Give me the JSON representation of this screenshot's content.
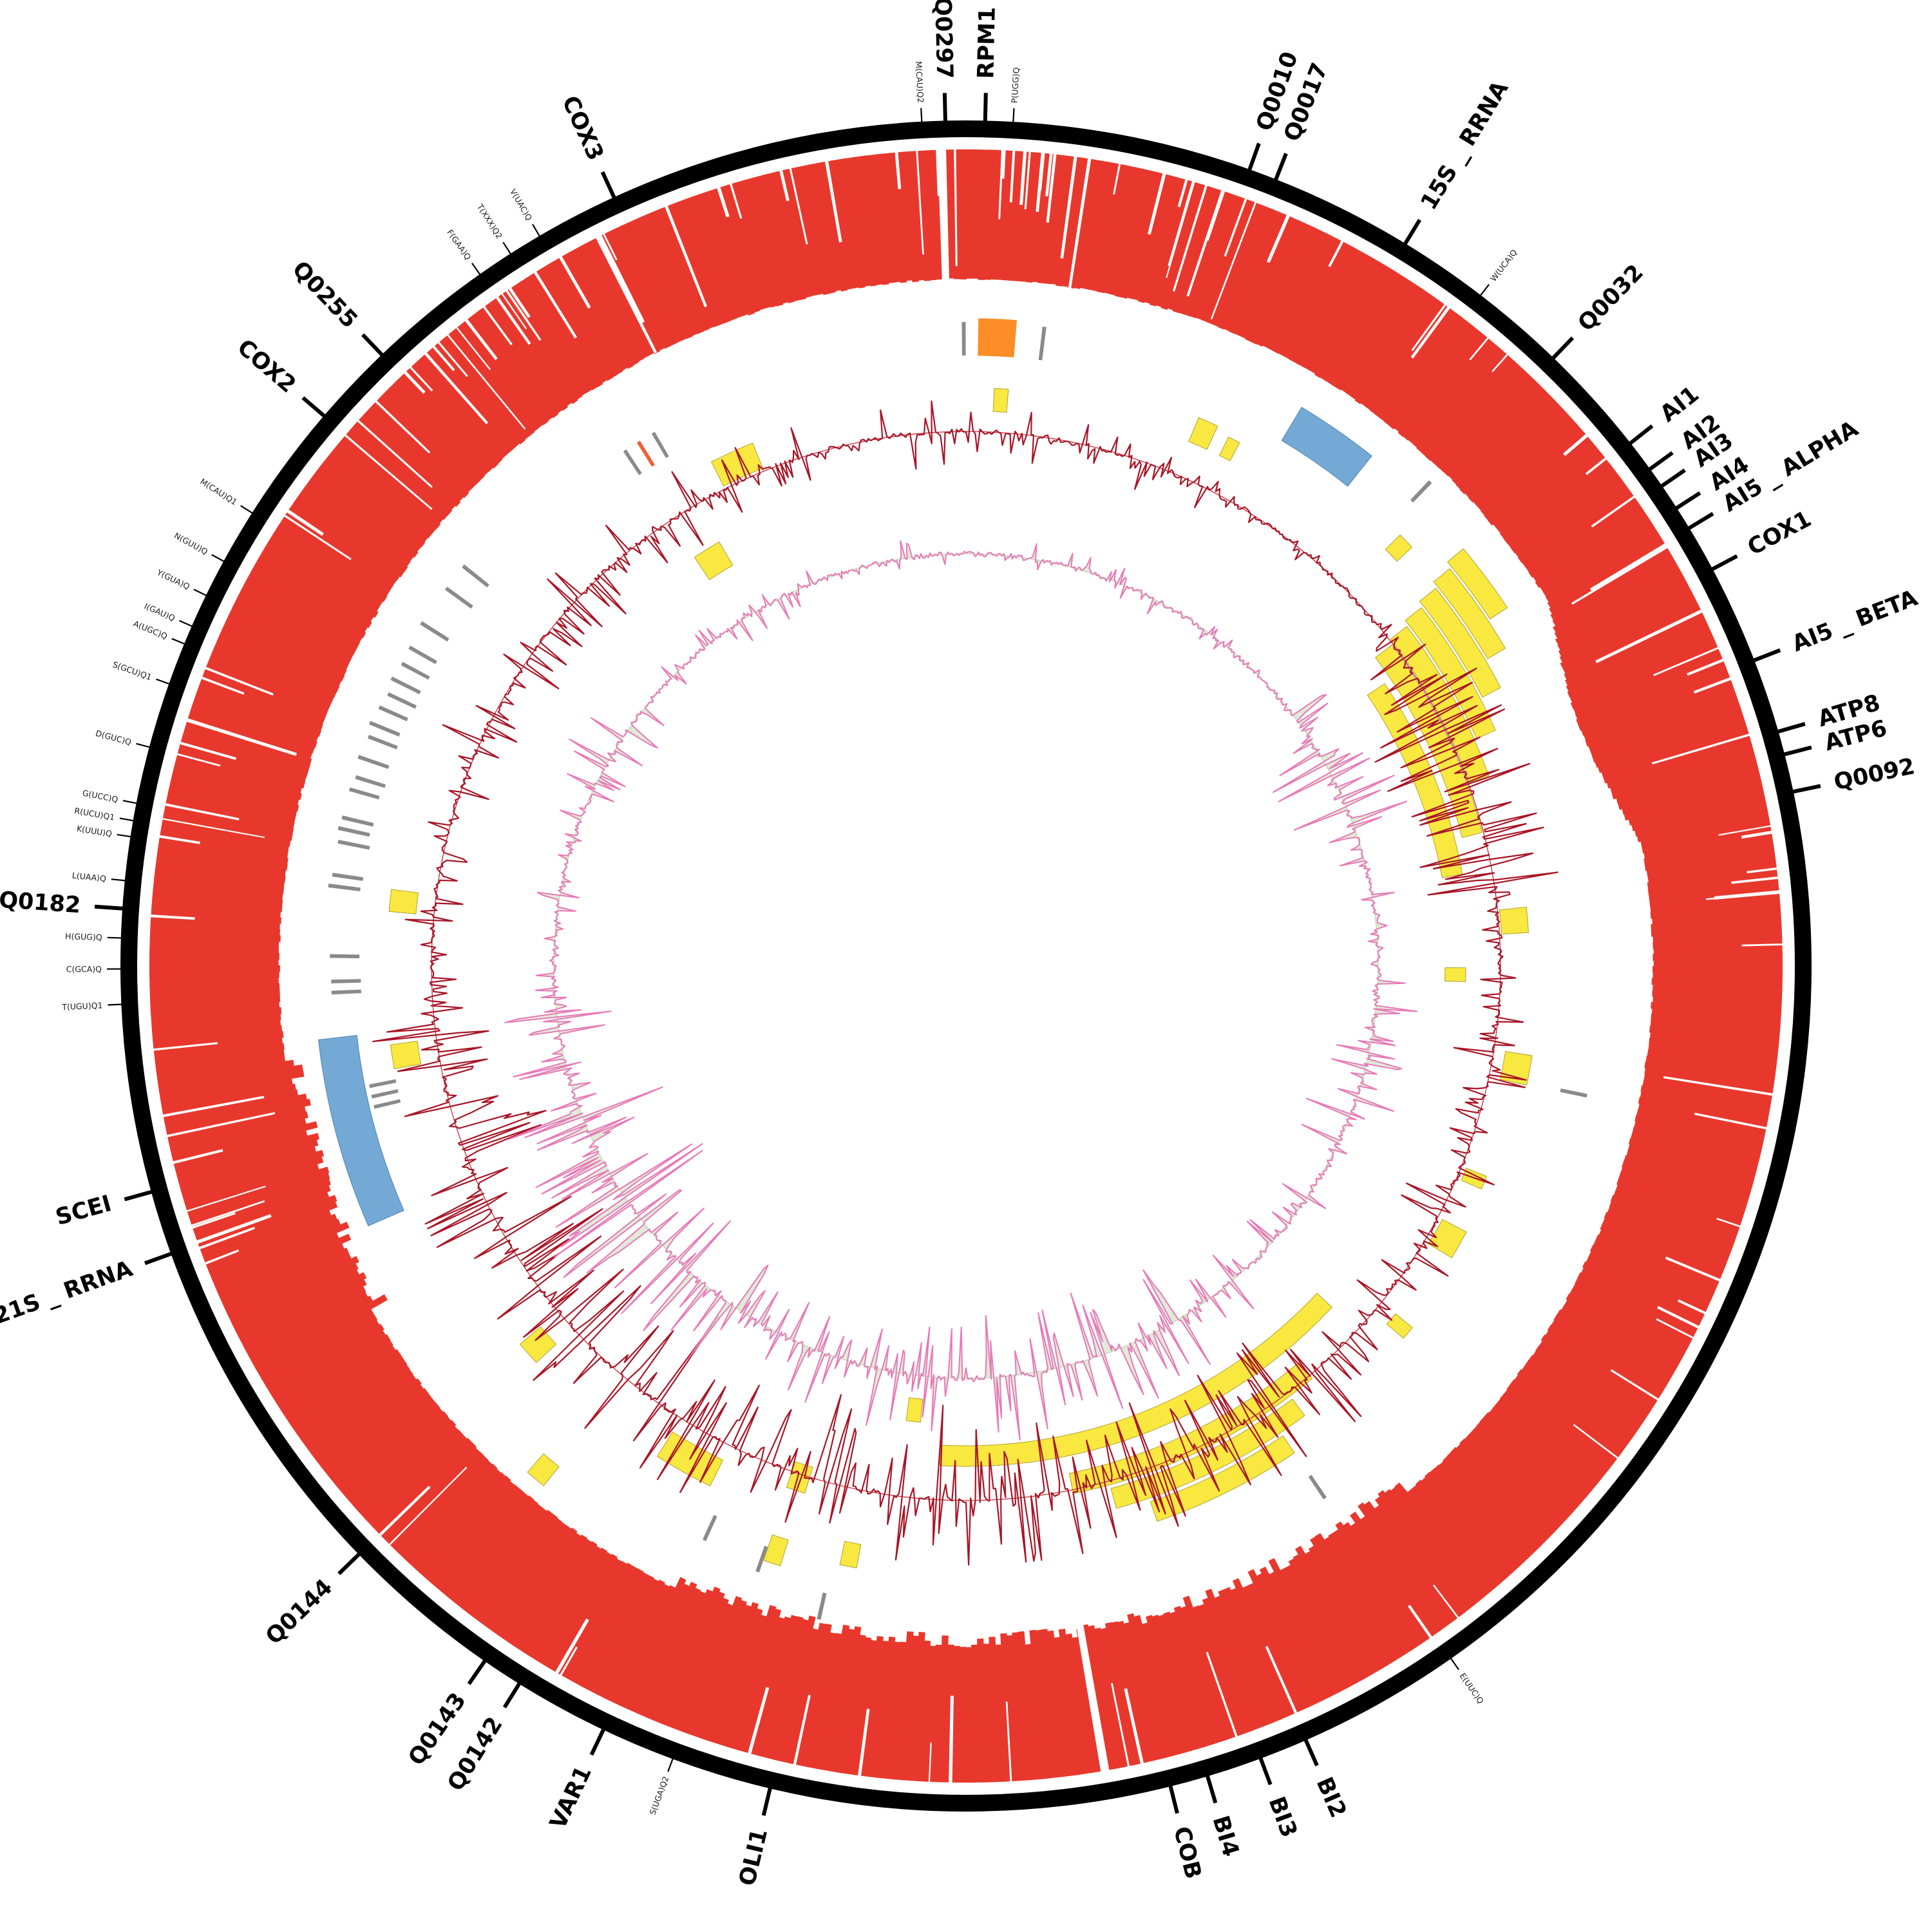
{
  "figure": {
    "type": "circos",
    "description": "Circular genome map (Circos-style) of a mitochondrial genome: outer black position ring with radial gene and tRNA labels, a thick red coverage ring with white dropout spikes, feature glyph tracks (yellow intron/ORF blocks, blue rRNA arcs, orange and gray marks) and two inner radial signal tracks (dark red and pink with pale green fill)."
  },
  "colors": {
    "background": "#ffffff",
    "outer_ring": "#000000",
    "ring_red": "#e8382d",
    "glyph_orange": "#fd8d27",
    "glyph_orangered": "#f25c33",
    "glyph_yellow": "#f9e840",
    "glyph_yellow_edge": "#b0a232",
    "glyph_blue": "#73a9d4",
    "glyph_blue_edge": "#5b8cb8",
    "glyph_gray": "#8a8a8a",
    "line_red": "#a81526",
    "baseline_red": "#c2293a",
    "line_pink": "#e878b8",
    "fill_green": "#d9e8cf",
    "baseline_green": "#c5d9ba",
    "label_color": "#000000",
    "small_label_color": "#1a1a1a"
  },
  "chart_data": {
    "type": "circos",
    "seed": 1337,
    "gene_labels": [
      {
        "label": "Q0297",
        "angle": 358.6
      },
      {
        "label": "RPM1",
        "angle": 1.3
      },
      {
        "label": "Q0010",
        "angle": 19.6
      },
      {
        "label": "Q0017",
        "angle": 21.5
      },
      {
        "label": "15S _ RRNA",
        "angle": 31.3
      },
      {
        "label": "Q0032",
        "angle": 44.0
      },
      {
        "label": "AI1",
        "angle": 51.8
      },
      {
        "label": "AI2",
        "angle": 54.0
      },
      {
        "label": "AI3",
        "angle": 55.4
      },
      {
        "label": "AI4",
        "angle": 57.2
      },
      {
        "label": "AI5 _ ALPHA",
        "angle": 58.8
      },
      {
        "label": "COX1",
        "angle": 62.0
      },
      {
        "label": "AI5 _ BETA",
        "angle": 68.8
      },
      {
        "label": "ATP8",
        "angle": 73.9
      },
      {
        "label": "ATP6",
        "angle": 75.5
      },
      {
        "label": "Q0092",
        "angle": 78.1
      },
      {
        "label": "BI2",
        "angle": 156.3
      },
      {
        "label": "BI3",
        "angle": 159.6
      },
      {
        "label": "BI4",
        "angle": 163.4
      },
      {
        "label": "COB",
        "angle": 166.0
      },
      {
        "label": "OLI1",
        "angle": 193.4
      },
      {
        "label": "VAR1",
        "angle": 205.4
      },
      {
        "label": "Q0142",
        "angle": 211.9
      },
      {
        "label": "Q0143",
        "angle": 214.7
      },
      {
        "label": "Q0144",
        "angle": 225.9
      },
      {
        "label": "21S _ RRNA",
        "angle": 250.1
      },
      {
        "label": "SCEI",
        "angle": 254.5
      },
      {
        "label": "Q0182",
        "angle": 273.9
      },
      {
        "label": "COX2",
        "angle": 310.6
      },
      {
        "label": "Q0255",
        "angle": 316.3
      },
      {
        "label": "COX3",
        "angle": 335.4
      }
    ],
    "trna_labels": [
      {
        "label": "M(CAU)Q2",
        "angle": 357.0
      },
      {
        "label": "P(UGG)Q",
        "angle": 3.2
      },
      {
        "label": "W(UCA)Q",
        "angle": 37.5
      },
      {
        "label": "E(UUC)Q",
        "angle": 145.0
      },
      {
        "label": "S(UGA)Q2",
        "angle": 200.3
      },
      {
        "label": "T(UGU)Q1",
        "angle": 267.4
      },
      {
        "label": "C(GCA)Q",
        "angle": 269.8
      },
      {
        "label": "H(GUG)Q",
        "angle": 271.9
      },
      {
        "label": "L(UAA)Q",
        "angle": 275.8
      },
      {
        "label": "K(UUU)Q",
        "angle": 278.8
      },
      {
        "label": "R(UCU)Q1",
        "angle": 279.9
      },
      {
        "label": "G(UCC)Q",
        "angle": 281.1
      },
      {
        "label": "D(GUC)Q",
        "angle": 285.0
      },
      {
        "label": "S(GCU)Q1",
        "angle": 289.5
      },
      {
        "label": "A(UGC)Q",
        "angle": 292.4
      },
      {
        "label": "I(GAU)Q",
        "angle": 293.7
      },
      {
        "label": "Y(GUA)Q",
        "angle": 296.0
      },
      {
        "label": "N(GUU)Q",
        "angle": 298.6
      },
      {
        "label": "M(CAU)Q1",
        "angle": 302.4
      },
      {
        "label": "F(GAA)Q",
        "angle": 324.9
      },
      {
        "label": "T(XXX)Q2",
        "angle": 327.4
      },
      {
        "label": "V(UAC)Q",
        "angle": 329.7
      }
    ],
    "glyphs": {
      "orange_blocks": [
        [
          1.1,
          4.5,
          948,
          1006
        ]
      ],
      "orangered_ticks": [
        [
          328.0,
          916,
          960
        ]
      ],
      "blue_blocks": [
        [
          31.0,
          38.5,
          952,
          1012
        ],
        [
          246.5,
          263.5,
          952,
          1012
        ]
      ],
      "yellow_blocks": [
        [
          50.0,
          56.5,
          976,
          1008
        ],
        [
          50.6,
          59.5,
          940,
          972
        ],
        [
          51.2,
          62.5,
          904,
          936
        ],
        [
          51.8,
          66.0,
          868,
          900
        ],
        [
          52.4,
          70.0,
          832,
          864
        ],
        [
          53.0,
          75.5,
          796,
          828
        ],
        [
          56.0,
          79.5,
          752,
          784
        ],
        [
          146.0,
          161.0,
          880,
          912
        ],
        [
          143.0,
          164.5,
          842,
          874
        ],
        [
          140.0,
          168.5,
          804,
          836
        ],
        [
          133.0,
          183.0,
          745,
          777
        ],
        [
          2.8,
          4.2,
          862,
          898
        ],
        [
          23.0,
          25.0,
          885,
          925
        ],
        [
          26.4,
          27.6,
          885,
          917
        ],
        [
          45.2,
          46.8,
          918,
          950
        ],
        [
          333.2,
          337.8,
          835,
          877
        ],
        [
          326.4,
          329.8,
          720,
          762
        ],
        [
          275.4,
          277.6,
          858,
          900
        ],
        [
          259.8,
          262.2,
          860,
          902
        ],
        [
          227.3,
          229.7,
          866,
          908
        ],
        [
          219.1,
          220.9,
          1002,
          1040
        ],
        [
          206.2,
          212.2,
          855,
          900
        ],
        [
          197.0,
          199.0,
          814,
          856
        ],
        [
          197.2,
          198.8,
          933,
          975
        ],
        [
          190.3,
          191.9,
          913,
          950
        ],
        [
          185.7,
          187.5,
          676,
          712
        ],
        [
          84.0,
          86.6,
          833,
          875
        ],
        [
          99.0,
          102.0,
          848,
          890
        ],
        [
          112.0,
          113.4,
          838,
          872
        ],
        [
          118.0,
          121.0,
          838,
          880
        ],
        [
          129.0,
          130.4,
          858,
          892
        ],
        [
          90.2,
          91.8,
          744,
          776
        ]
      ],
      "gray_ticks": [
        [
          359.8,
          948,
          1000
        ],
        [
          7.0,
          948,
          1000
        ],
        [
          43.8,
          1000,
          1042
        ],
        [
          101.8,
          943,
          985
        ],
        [
          146.0,
          955,
          997
        ],
        [
          326.5,
          916,
          960
        ],
        [
          329.6,
          916,
          960
        ],
        [
          308.5,
          948,
          998
        ],
        [
          306.0,
          948,
          998
        ],
        [
          302.2,
          950,
          1000
        ],
        [
          299.8,
          948,
          996
        ],
        [
          298.2,
          946,
          994
        ],
        [
          296.6,
          948,
          998
        ],
        [
          295.2,
          944,
          992
        ],
        [
          293.8,
          948,
          996
        ],
        [
          292.2,
          950,
          1000
        ],
        [
          291.0,
          946,
          994
        ],
        [
          289.0,
          948,
          998
        ],
        [
          287.2,
          944,
          992
        ],
        [
          286.0,
          948,
          996
        ],
        [
          283.4,
          946,
          996
        ],
        [
          282.4,
          948,
          998
        ],
        [
          281.2,
          944,
          994
        ],
        [
          278.2,
          946,
          994
        ],
        [
          277.2,
          948,
          998
        ],
        [
          270.9,
          942,
          988
        ],
        [
          267.6,
          940,
          986
        ],
        [
          268.6,
          940,
          986
        ],
        [
          256.6,
          903,
          945
        ],
        [
          257.6,
          903,
          945
        ],
        [
          258.6,
          903,
          945
        ],
        [
          204.5,
          938,
          980
        ],
        [
          199.0,
          953,
          995
        ],
        [
          192.7,
          998,
          1040
        ]
      ]
    },
    "series": {
      "coverage_ring": {
        "outer_r": 1268,
        "thickness": 200,
        "gaps": [
          358.3,
          170.2
        ],
        "bulge_region": [
          58,
          80
        ],
        "ragged_regions": [
          [
            140,
            205
          ],
          [
            240,
            262
          ]
        ],
        "spike_regions": [
          {
            "a0": 318,
            "a1": 360,
            "count": 26,
            "dmin": 0.2,
            "dmax": 0.98
          },
          {
            "a0": 0,
            "a1": 40,
            "count": 26,
            "dmin": 0.2,
            "dmax": 0.98
          },
          {
            "a0": 40,
            "a1": 55,
            "count": 4,
            "dmin": 0.15,
            "dmax": 0.5
          },
          {
            "a0": 55,
            "a1": 100,
            "count": 15,
            "dmin": 0.2,
            "dmax": 0.85
          },
          {
            "a0": 100,
            "a1": 140,
            "count": 8,
            "dmin": 0.15,
            "dmax": 0.6
          },
          {
            "a0": 140,
            "a1": 215,
            "count": 14,
            "dmin": 0.2,
            "dmax": 0.7
          },
          {
            "a0": 215,
            "a1": 268,
            "count": 12,
            "dmin": 0.2,
            "dmax": 0.8
          },
          {
            "a0": 268,
            "a1": 318,
            "count": 16,
            "dmin": 0.2,
            "dmax": 0.85
          }
        ]
      },
      "red_line": {
        "baseline_r": 830,
        "clamp": [
          592,
          930
        ],
        "inward_bias": 0.58,
        "amplitude_envelope": [
          [
            0,
            28,
            45
          ],
          [
            28,
            52,
            18
          ],
          [
            52,
            62,
            90
          ],
          [
            62,
            82,
            130
          ],
          [
            82,
            98,
            45
          ],
          [
            98,
            118,
            70
          ],
          [
            118,
            138,
            60
          ],
          [
            138,
            160,
            120
          ],
          [
            160,
            178,
            150
          ],
          [
            178,
            200,
            150
          ],
          [
            200,
            215,
            120
          ],
          [
            215,
            252,
            185
          ],
          [
            252,
            268,
            110
          ],
          [
            268,
            288,
            55
          ],
          [
            288,
            312,
            65
          ],
          [
            312,
            332,
            70
          ],
          [
            332,
            360,
            55
          ]
        ]
      },
      "pink_line": {
        "baseline_r": 640,
        "clamp": [
          425,
          800
        ],
        "inward_bias": 0.52,
        "outward_bias_region": [
          214,
          250
        ],
        "amplitude_envelope": [
          [
            0,
            30,
            25
          ],
          [
            30,
            52,
            22
          ],
          [
            52,
            72,
            95
          ],
          [
            72,
            92,
            40
          ],
          [
            92,
            118,
            75
          ],
          [
            118,
            148,
            55
          ],
          [
            148,
            178,
            110
          ],
          [
            178,
            198,
            95
          ],
          [
            198,
            214,
            85
          ],
          [
            214,
            250,
            150
          ],
          [
            250,
            266,
            85
          ],
          [
            266,
            288,
            40
          ],
          [
            288,
            312,
            70
          ],
          [
            312,
            338,
            40
          ],
          [
            338,
            360,
            28
          ]
        ]
      }
    }
  }
}
